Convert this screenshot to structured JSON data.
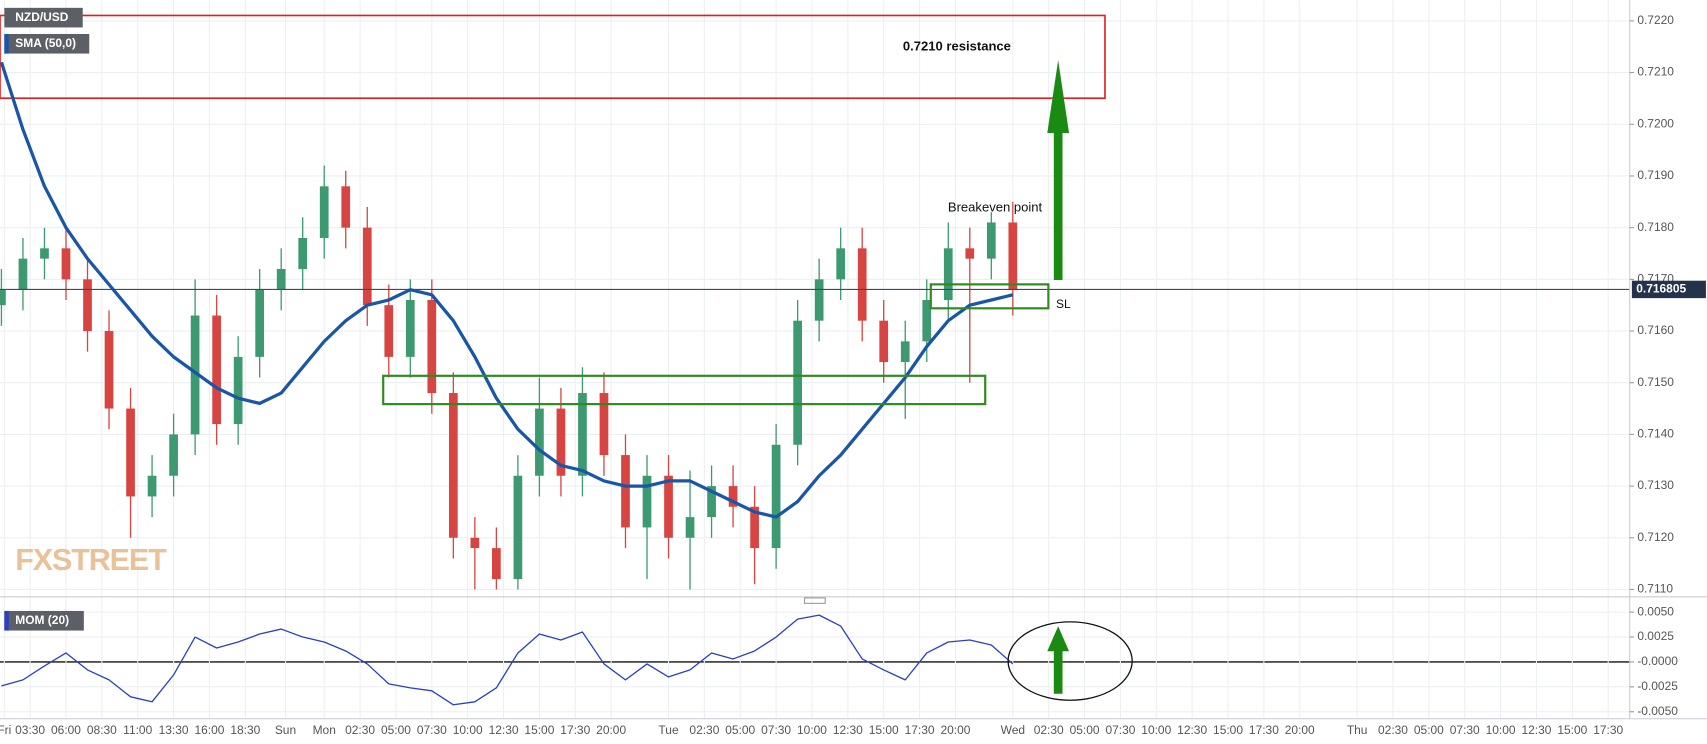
{
  "chart_data": [
    {
      "type": "candlestick",
      "title": "NZD/USD",
      "x": [
        -22.5,
        -21,
        -19.5,
        -18,
        -16.5,
        -15,
        -13.5,
        -12,
        -10.5,
        -9,
        -7.5,
        -6,
        -4.5,
        -3,
        -1.5,
        0,
        1.5,
        3,
        4.5,
        6,
        7.5,
        9,
        10.5,
        12,
        13.5,
        15,
        16.5,
        18,
        19.5,
        21,
        22.5,
        24,
        25.5,
        27,
        28.5,
        30,
        31.5,
        33,
        34.5,
        36,
        37.5,
        39,
        40.5,
        42,
        43.5,
        45,
        46.5,
        48
      ],
      "open": [
        0.7165,
        0.7168,
        0.7174,
        0.7176,
        0.717,
        0.716,
        0.7145,
        0.7128,
        0.7132,
        0.714,
        0.7163,
        0.7142,
        0.7155,
        0.7168,
        0.7172,
        0.7178,
        0.7188,
        0.718,
        0.7165,
        0.7155,
        0.7166,
        0.7148,
        0.712,
        0.7118,
        0.7112,
        0.7132,
        0.7145,
        0.7132,
        0.7148,
        0.7136,
        0.7122,
        0.7132,
        0.712,
        0.7124,
        0.713,
        0.7126,
        0.7118,
        0.7138,
        0.7162,
        0.717,
        0.7176,
        0.7162,
        0.7154,
        0.7158,
        0.7166,
        0.7176,
        0.7174,
        0.7181
      ],
      "high": [
        0.7172,
        0.7178,
        0.718,
        0.718,
        0.7174,
        0.7164,
        0.7149,
        0.7136,
        0.7144,
        0.717,
        0.7167,
        0.7159,
        0.7172,
        0.7176,
        0.7182,
        0.7192,
        0.7191,
        0.7184,
        0.7169,
        0.717,
        0.717,
        0.7152,
        0.7124,
        0.7122,
        0.7136,
        0.7151,
        0.7149,
        0.7153,
        0.7152,
        0.714,
        0.7136,
        0.7136,
        0.7133,
        0.7134,
        0.7134,
        0.713,
        0.7142,
        0.7166,
        0.7174,
        0.718,
        0.718,
        0.7166,
        0.7162,
        0.717,
        0.7181,
        0.718,
        0.7183,
        0.7185
      ],
      "low": [
        0.7161,
        0.7164,
        0.717,
        0.7166,
        0.7156,
        0.7141,
        0.712,
        0.7124,
        0.7128,
        0.7136,
        0.7138,
        0.7138,
        0.7151,
        0.7164,
        0.7168,
        0.7174,
        0.7176,
        0.7161,
        0.7151,
        0.7151,
        0.7144,
        0.7116,
        0.711,
        0.711,
        0.711,
        0.7128,
        0.7128,
        0.7128,
        0.7132,
        0.7118,
        0.7112,
        0.7116,
        0.711,
        0.712,
        0.7122,
        0.7111,
        0.7114,
        0.7134,
        0.7158,
        0.7166,
        0.7158,
        0.715,
        0.7143,
        0.7154,
        0.7162,
        0.715,
        0.717,
        0.7163
      ],
      "close": [
        0.7168,
        0.7174,
        0.7176,
        0.717,
        0.716,
        0.7145,
        0.7128,
        0.7132,
        0.714,
        0.7163,
        0.7142,
        0.7155,
        0.7168,
        0.7172,
        0.7178,
        0.7188,
        0.718,
        0.7165,
        0.7155,
        0.7166,
        0.7148,
        0.712,
        0.7118,
        0.7112,
        0.7132,
        0.7145,
        0.7132,
        0.7148,
        0.7136,
        0.7122,
        0.7132,
        0.712,
        0.7124,
        0.713,
        0.7126,
        0.7118,
        0.7138,
        0.7162,
        0.717,
        0.7176,
        0.7162,
        0.7154,
        0.7158,
        0.7166,
        0.7176,
        0.7174,
        0.7181,
        0.7168
      ],
      "up_color": "#3d9970",
      "down_color": "#d64541",
      "series": [
        {
          "name": "SMA (50,0)",
          "color": "#1a56a8",
          "values": [
            0.7212,
            0.7199,
            0.7188,
            0.718,
            0.7174,
            0.7169,
            0.7164,
            0.7159,
            0.7155,
            0.7152,
            0.7149,
            0.7147,
            0.7146,
            0.7148,
            0.7153,
            0.7158,
            0.7162,
            0.7165,
            0.7166,
            0.7168,
            0.7167,
            0.7162,
            0.7155,
            0.7147,
            0.7141,
            0.7137,
            0.7134,
            0.7133,
            0.7131,
            0.713,
            0.713,
            0.7131,
            0.7131,
            0.7129,
            0.7127,
            0.7125,
            0.7124,
            0.7127,
            0.7132,
            0.7136,
            0.7141,
            0.7146,
            0.7151,
            0.7157,
            0.7162,
            0.7165,
            0.7166,
            0.7167
          ]
        }
      ],
      "last_price": 0.716805,
      "xlim": [
        -22.6,
        91.0
      ],
      "ylim": [
        0.7109,
        0.7224
      ],
      "yticks": [
        {
          "value": 0.711,
          "label": "0.7110"
        },
        {
          "value": 0.712,
          "label": "0.7120"
        },
        {
          "value": 0.713,
          "label": "0.7130"
        },
        {
          "value": 0.714,
          "label": "0.7140"
        },
        {
          "value": 0.715,
          "label": "0.7150"
        },
        {
          "value": 0.716,
          "label": "0.7160"
        },
        {
          "value": 0.717,
          "label": "0.7170"
        },
        {
          "value": 0.718,
          "label": "0.7180"
        },
        {
          "value": 0.719,
          "label": "0.7190"
        },
        {
          "value": 0.72,
          "label": "0.7200"
        },
        {
          "value": 0.721,
          "label": "0.7210"
        },
        {
          "value": 0.722,
          "label": "0.7220"
        }
      ],
      "grid": true,
      "annotations": [
        "0.7210 resistance",
        "Breakeven point",
        "SL"
      ],
      "watermark": "FXSTREET"
    },
    {
      "type": "line",
      "title": "MOM (20)",
      "x": [
        -22.5,
        -21,
        -19.5,
        -18,
        -16.5,
        -15,
        -13.5,
        -12,
        -10.5,
        -9,
        -7.5,
        -6,
        -4.5,
        -3,
        -1.5,
        0,
        1.5,
        3,
        4.5,
        6,
        7.5,
        9,
        10.5,
        12,
        13.5,
        15,
        16.5,
        18,
        19.5,
        21,
        22.5,
        24,
        25.5,
        27,
        28.5,
        30,
        31.5,
        33,
        34.5,
        36,
        37.5,
        39,
        40.5,
        42,
        43.5,
        45,
        46.5,
        48
      ],
      "series": [
        {
          "name": "MOM (20)",
          "color": "#2a3fc4",
          "values": [
            -0.0024,
            -0.0018,
            -0.0004,
            0.0009,
            -0.0008,
            -0.0018,
            -0.0035,
            -0.004,
            -0.0013,
            0.0025,
            0.0014,
            0.002,
            0.0028,
            0.0033,
            0.0025,
            0.002,
            0.0011,
            -0.0002,
            -0.0022,
            -0.0026,
            -0.0029,
            -0.0043,
            -0.004,
            -0.0026,
            0.0009,
            0.0028,
            0.0022,
            0.003,
            -0.0002,
            -0.0018,
            -0.0002,
            -0.0015,
            -0.0008,
            0.0009,
            0.0003,
            0.0011,
            0.0025,
            0.0043,
            0.0047,
            0.0036,
            0.0003,
            -0.0008,
            -0.0018,
            0.0009,
            0.002,
            0.0022,
            0.0017,
            -0.0002
          ]
        }
      ],
      "xlim": [
        -22.6,
        91.0
      ],
      "ylim": [
        -0.0057,
        0.0061
      ],
      "yticks": [
        {
          "value": 0.005,
          "label": "0.0050"
        },
        {
          "value": 0.0025,
          "label": "0.0025"
        },
        {
          "value": 0,
          "label": "-0.0000"
        },
        {
          "value": -0.0025,
          "label": "-0.0025"
        },
        {
          "value": -0.005,
          "label": "-0.0050"
        }
      ],
      "xticks": [
        {
          "value": -22.3,
          "label": "Fri"
        },
        {
          "value": -20.5,
          "label": "03:30"
        },
        {
          "value": -18,
          "label": "06:00"
        },
        {
          "value": -15.5,
          "label": "08:30"
        },
        {
          "value": -13,
          "label": "11:00"
        },
        {
          "value": -10.5,
          "label": "13:30"
        },
        {
          "value": -8,
          "label": "16:00"
        },
        {
          "value": -5.5,
          "label": "18:30"
        },
        {
          "value": -2.7,
          "label": "Sun"
        },
        {
          "value": 0,
          "label": "Mon"
        },
        {
          "value": 2.5,
          "label": "02:30"
        },
        {
          "value": 5,
          "label": "05:00"
        },
        {
          "value": 7.5,
          "label": "07:30"
        },
        {
          "value": 10,
          "label": "10:00"
        },
        {
          "value": 12.5,
          "label": "12:30"
        },
        {
          "value": 15,
          "label": "15:00"
        },
        {
          "value": 17.5,
          "label": "17:30"
        },
        {
          "value": 20,
          "label": "20:00"
        },
        {
          "value": 24,
          "label": "Tue"
        },
        {
          "value": 26.5,
          "label": "02:30"
        },
        {
          "value": 29,
          "label": "05:00"
        },
        {
          "value": 31.5,
          "label": "07:30"
        },
        {
          "value": 34,
          "label": "10:00"
        },
        {
          "value": 36.5,
          "label": "12:30"
        },
        {
          "value": 39,
          "label": "15:00"
        },
        {
          "value": 41.5,
          "label": "17:30"
        },
        {
          "value": 44,
          "label": "20:00"
        },
        {
          "value": 48,
          "label": "Wed"
        },
        {
          "value": 50.5,
          "label": "02:30"
        },
        {
          "value": 53,
          "label": "05:00"
        },
        {
          "value": 55.5,
          "label": "07:30"
        },
        {
          "value": 58,
          "label": "10:00"
        },
        {
          "value": 60.5,
          "label": "12:30"
        },
        {
          "value": 63,
          "label": "15:00"
        },
        {
          "value": 65.5,
          "label": "17:30"
        },
        {
          "value": 68,
          "label": "20:00"
        },
        {
          "value": 72,
          "label": "Thu"
        },
        {
          "value": 74.5,
          "label": "02:30"
        },
        {
          "value": 77,
          "label": "05:00"
        },
        {
          "value": 79.5,
          "label": "07:30"
        },
        {
          "value": 82,
          "label": "10:00"
        },
        {
          "value": 84.5,
          "label": "12:30"
        },
        {
          "value": 87,
          "label": "15:00"
        },
        {
          "value": 89.5,
          "label": "17:30"
        }
      ],
      "grid": true
    }
  ]
}
